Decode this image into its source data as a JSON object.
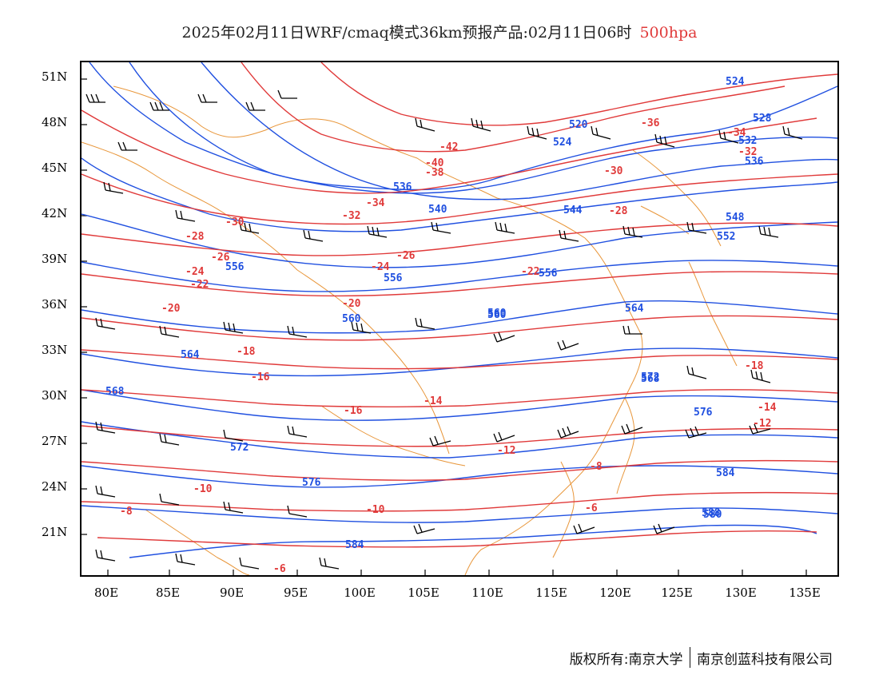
{
  "title": {
    "main": "2025年02月11日WRF/cmaq模式36km预报产品:02月11日06时",
    "level": "500hpa"
  },
  "axes": {
    "lat_labels": [
      "51N",
      "48N",
      "45N",
      "42N",
      "39N",
      "36N",
      "33N",
      "30N",
      "27N",
      "24N",
      "21N"
    ],
    "lon_labels": [
      "80E",
      "85E",
      "90E",
      "95E",
      "100E",
      "105E",
      "110E",
      "115E",
      "120E",
      "125E",
      "130E",
      "135E"
    ]
  },
  "footer": {
    "copyright": "版权所有:南京大学",
    "company": "南京创蓝科技有限公司"
  },
  "colors": {
    "height_contour": "#2050e0",
    "temp_contour": "#e03a3a",
    "coastline": "#e8963a",
    "wind_barb": "#000000"
  },
  "height_labels": [
    "524",
    "520",
    "524",
    "528",
    "532",
    "536",
    "536",
    "540",
    "544",
    "548",
    "552",
    "556",
    "556",
    "560",
    "560",
    "564",
    "568",
    "572",
    "576",
    "580",
    "584",
    "588",
    "556",
    "560",
    "564",
    "568",
    "572",
    "576",
    "584"
  ],
  "temp_labels": [
    "-36",
    "-34",
    "-32",
    "-30",
    "-28",
    "-26",
    "-24",
    "-22",
    "-20",
    "-18",
    "-16",
    "-14",
    "-12",
    "-10",
    "-8",
    "-6",
    "-42",
    "-40",
    "-38",
    "-34",
    "-32",
    "-30",
    "-28",
    "-26",
    "-24",
    "-22",
    "-20",
    "-18",
    "-16",
    "-14",
    "-12",
    "-10",
    "-8",
    "-6"
  ]
}
